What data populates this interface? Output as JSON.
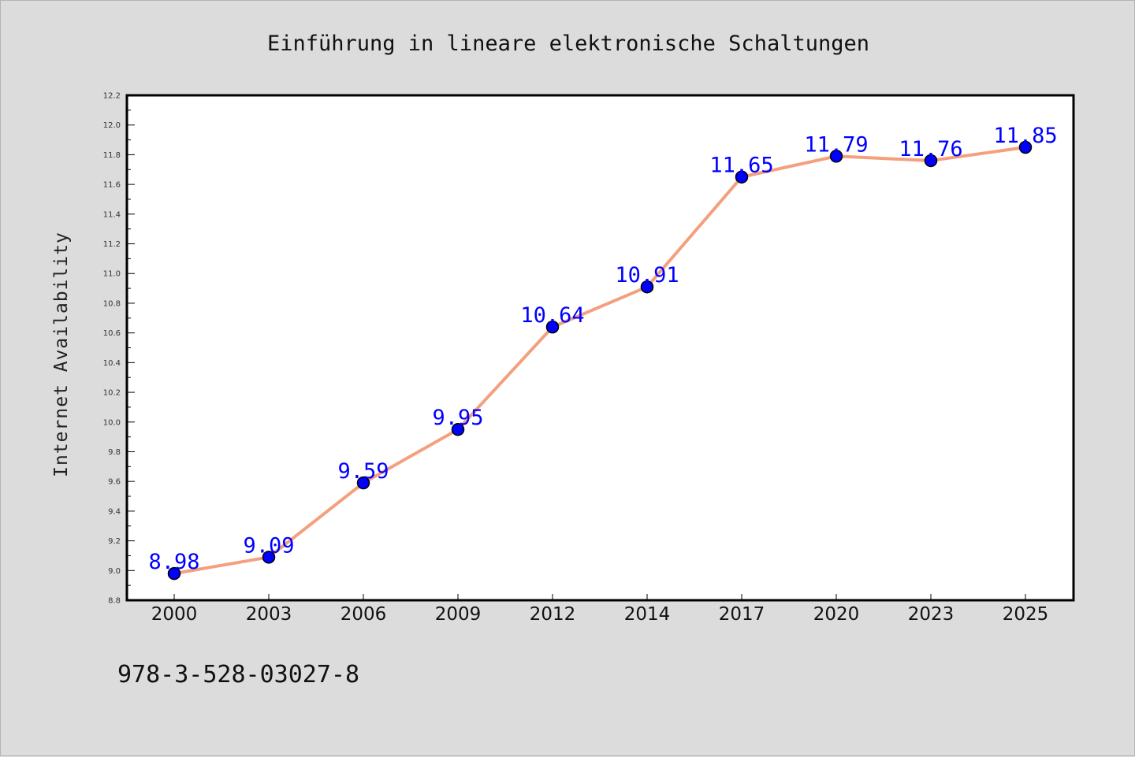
{
  "chart_data": {
    "type": "line",
    "title": "Einführung in lineare elektronische Schaltungen",
    "xlabel": "",
    "ylabel": "Internet Availability",
    "categories": [
      "2000",
      "2003",
      "2006",
      "2009",
      "2012",
      "2014",
      "2017",
      "2020",
      "2023",
      "2025"
    ],
    "series": [
      {
        "values": [
          8.98,
          9.09,
          9.59,
          9.95,
          10.64,
          10.91,
          11.65,
          11.79,
          11.76,
          11.85
        ],
        "labels": [
          "8.98",
          "9.09",
          "9.59",
          "9.95",
          "10.64",
          "10.91",
          "11.65",
          "11.79",
          "11.76",
          "11.85"
        ],
        "line_color": "#f4a07e",
        "marker_color": "#0000ff"
      }
    ],
    "ylim": [
      8.8,
      12.2
    ],
    "yticks": [
      "8.8",
      "9.0",
      "9.2",
      "9.4",
      "9.6",
      "9.8",
      "10.0",
      "10.2",
      "10.4",
      "10.6",
      "10.8",
      "11.0",
      "11.2",
      "11.4",
      "11.6",
      "11.8",
      "12.0",
      "12.2"
    ],
    "grid": false,
    "legend": "none"
  },
  "footer": {
    "isbn": "978-3-528-03027-8"
  },
  "colors": {
    "background": "#dcdcdc",
    "plot_background": "#ffffff",
    "axis": "#000000"
  }
}
